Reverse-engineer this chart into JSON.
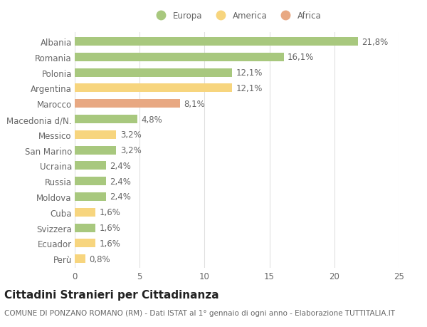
{
  "categories": [
    "Albania",
    "Romania",
    "Polonia",
    "Argentina",
    "Marocco",
    "Macedonia d/N.",
    "Messico",
    "San Marino",
    "Ucraina",
    "Russia",
    "Moldova",
    "Cuba",
    "Svizzera",
    "Ecuador",
    "Perù"
  ],
  "values": [
    21.8,
    16.1,
    12.1,
    12.1,
    8.1,
    4.8,
    3.2,
    3.2,
    2.4,
    2.4,
    2.4,
    1.6,
    1.6,
    1.6,
    0.8
  ],
  "labels": [
    "21,8%",
    "16,1%",
    "12,1%",
    "12,1%",
    "8,1%",
    "4,8%",
    "3,2%",
    "3,2%",
    "2,4%",
    "2,4%",
    "2,4%",
    "1,6%",
    "1,6%",
    "1,6%",
    "0,8%"
  ],
  "continents": [
    "Europa",
    "Europa",
    "Europa",
    "America",
    "Africa",
    "Europa",
    "America",
    "Europa",
    "Europa",
    "Europa",
    "Europa",
    "America",
    "Europa",
    "America",
    "America"
  ],
  "colors": {
    "Europa": "#a8c87e",
    "America": "#f7d57e",
    "Africa": "#e8a882"
  },
  "legend_items": [
    "Europa",
    "America",
    "Africa"
  ],
  "title": "Cittadini Stranieri per Cittadinanza",
  "subtitle": "COMUNE DI PONZANO ROMANO (RM) - Dati ISTAT al 1° gennaio di ogni anno - Elaborazione TUTTITALIA.IT",
  "xlim": [
    0,
    25
  ],
  "xticks": [
    0,
    5,
    10,
    15,
    20,
    25
  ],
  "background_color": "#ffffff",
  "grid_color": "#e0e0e0",
  "bar_height": 0.55,
  "label_fontsize": 8.5,
  "tick_fontsize": 8.5,
  "title_fontsize": 11,
  "subtitle_fontsize": 7.5
}
